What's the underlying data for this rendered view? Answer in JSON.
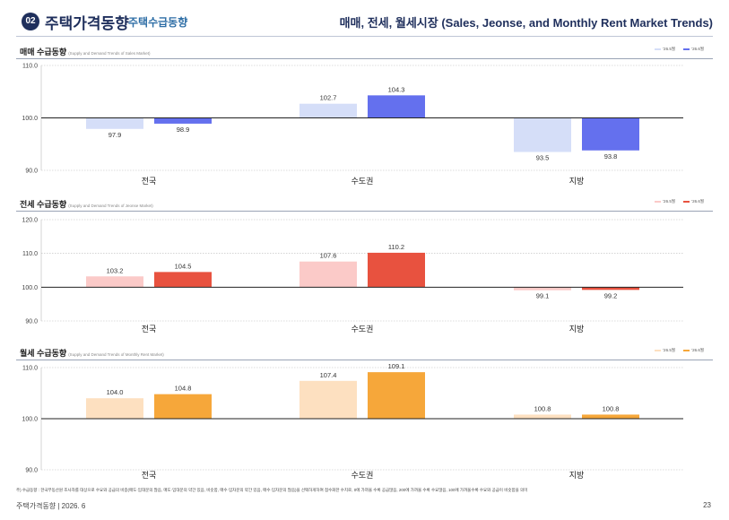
{
  "header": {
    "badge": "02",
    "title": "주택가격동향",
    "subtitle": "주택수급동향",
    "right_title": "매매, 전세, 월세시장 (Sales, Jeonse, and Monthly Rent Market Trends)"
  },
  "legend_labels": [
    "'26.5월",
    "'26.6월"
  ],
  "chart_data": [
    {
      "type": "bar",
      "title": "매매 수급동향",
      "subtitle": "(Supply and Demand Trends of Sales Market)",
      "categories": [
        "전국",
        "수도권",
        "지방"
      ],
      "series": [
        {
          "name": "'26.5월",
          "values": [
            97.9,
            102.7,
            93.5
          ],
          "color": "#d5def8"
        },
        {
          "name": "'26.6월",
          "values": [
            98.9,
            104.3,
            93.8
          ],
          "color": "#6470ee"
        }
      ],
      "ylim": [
        90,
        110
      ],
      "yticks": [
        "90.0",
        "100.0",
        "110.0"
      ],
      "baseline": 100,
      "legend_position": "top-right"
    },
    {
      "type": "bar",
      "title": "전세 수급동향",
      "subtitle": "(Supply and Demand Trends of Jeonse Market)",
      "categories": [
        "전국",
        "수도권",
        "지방"
      ],
      "series": [
        {
          "name": "'26.5월",
          "values": [
            103.2,
            107.6,
            99.1
          ],
          "color": "#fbcac8"
        },
        {
          "name": "'26.6월",
          "values": [
            104.5,
            110.2,
            99.2
          ],
          "color": "#e8523f"
        }
      ],
      "ylim": [
        90,
        120
      ],
      "yticks": [
        "90.0",
        "100.0",
        "110.0",
        "120.0"
      ],
      "baseline": 100,
      "legend_position": "top-right"
    },
    {
      "type": "bar",
      "title": "월세 수급동향",
      "subtitle": "(Supply and Demand Trends of Monthly Rent Market)",
      "categories": [
        "전국",
        "수도권",
        "지방"
      ],
      "series": [
        {
          "name": "'26.5월",
          "values": [
            104.0,
            107.4,
            100.8
          ],
          "color": "#fde0c0"
        },
        {
          "name": "'26.6월",
          "values": [
            104.8,
            109.1,
            100.8
          ],
          "color": "#f6a73a"
        }
      ],
      "ylim": [
        90,
        110
      ],
      "yticks": [
        "90.0",
        "100.0",
        "110.0"
      ],
      "baseline": 100,
      "legend_position": "top-right"
    }
  ],
  "footnote": "주) 수급동향 : 한국부동산원 조사자를 대상으로 수요와 공급의 비중(매도·임대문의 많음, 매도·임대문의 약간 있음, 비슷함, 매수·임차문의 약간 있음, 매수·임차문의 많음)을 선택하게하여 점수화한 수치로, 0에 가까울 수록 공급많음, 200에 가까울 수록 수요많음, 100에 가까울수록 수요와 공급이 비슷함을 의미",
  "footer": {
    "left": "주택가격동향   |   2026. 6",
    "page": "23"
  }
}
